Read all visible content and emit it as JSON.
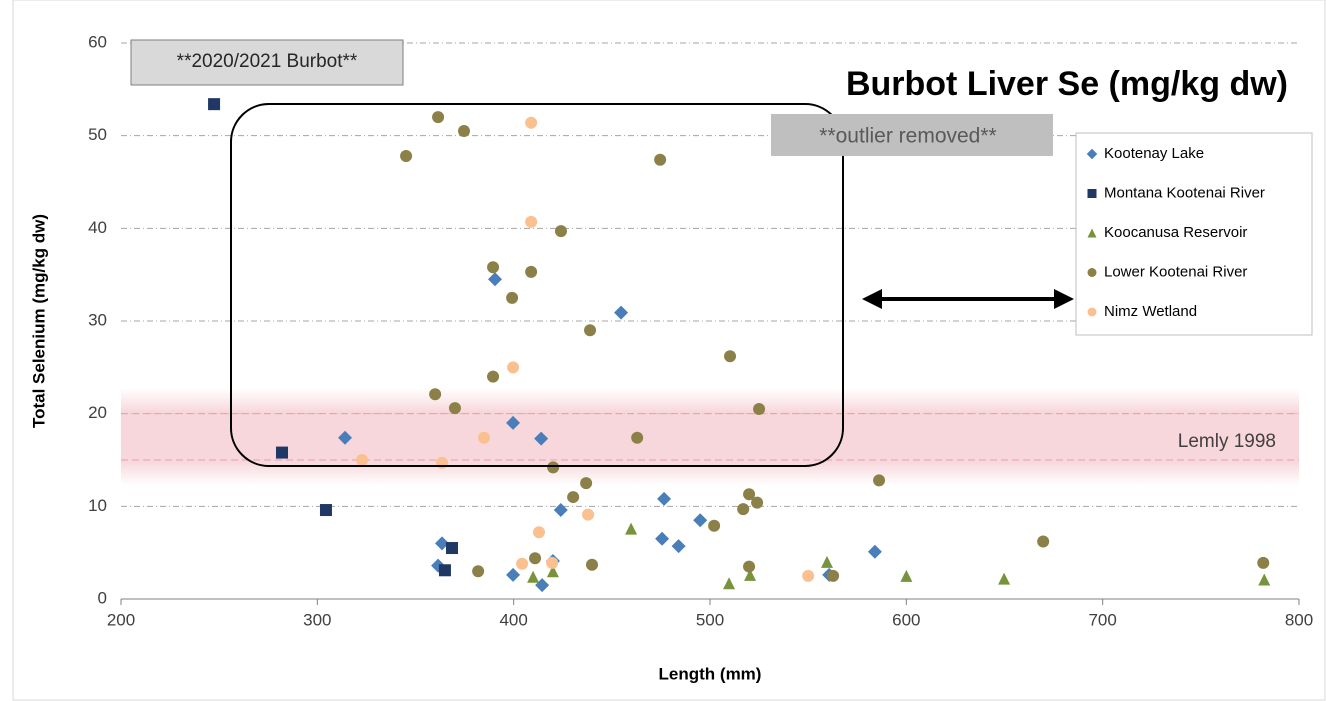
{
  "chart_data": {
    "type": "scatter",
    "title": "Burbot Liver Se (mg/kg dw)",
    "annotations": [
      "**2020/2021 Burbot**",
      "**outlier removed**"
    ],
    "x_label": "Length (mm)",
    "y_label": "Total Selenium (mg/kg dw)",
    "xlim": [
      200,
      800
    ],
    "xticks": [
      200,
      300,
      400,
      500,
      600,
      700,
      800
    ],
    "ylim": [
      0,
      60
    ],
    "yticks": [
      0,
      10,
      20,
      30,
      40,
      50,
      60
    ],
    "grid": true,
    "legend": "right",
    "reference_band": {
      "range": [
        15,
        20
      ],
      "label": "Lemly 1998",
      "color": "#e8a0a8"
    },
    "series": [
      {
        "name": "Kootenay Lake",
        "color": "#4a7ebb",
        "marker": "diamond",
        "x": [
          314.1,
          390.5,
          454.7,
          399.7,
          414,
          476.6,
          424,
          495,
          475.6,
          484,
          363.5,
          361.5,
          399.7,
          420,
          414.5,
          560.7,
          584
        ],
        "values": [
          17.4,
          34.5,
          30.9,
          19.0,
          17.3,
          10.8,
          9.6,
          8.5,
          6.5,
          5.7,
          6.0,
          3.6,
          2.6,
          4.1,
          1.5,
          2.6,
          5.1
        ]
      },
      {
        "name": "Montana Kootenai River",
        "color": "#1f3864",
        "marker": "square",
        "x": [
          247.4,
          282,
          304.4,
          365,
          368.6
        ],
        "values": [
          53.4,
          15.8,
          9.6,
          3.1,
          5.5
        ]
      },
      {
        "name": "Koocanusa Reservoir",
        "color": "#77933c",
        "marker": "triangle",
        "x": [
          459.8,
          409.9,
          420,
          509.7,
          520.4,
          559.6,
          600,
          649.8,
          782.3
        ],
        "values": [
          7.6,
          2.4,
          3.0,
          1.7,
          2.6,
          4.0,
          2.5,
          2.2,
          2.1
        ]
      },
      {
        "name": "Lower Kootenai River",
        "color": "#8b8048",
        "marker": "circle",
        "x": [
          361.5,
          374.7,
          345.2,
          474.6,
          424.1,
          389.5,
          408.9,
          399.2,
          438.9,
          510.2,
          389.5,
          360,
          370.1,
          525,
          462.9,
          420.1,
          436.9,
          586.1,
          430.3,
          519.9,
          524,
          516.9,
          502.1,
          410.9,
          439.9,
          381.9,
          519.9,
          562.7,
          669.7,
          781.8
        ],
        "values": [
          52.0,
          50.5,
          47.8,
          47.4,
          39.7,
          35.8,
          35.3,
          32.5,
          29.0,
          26.2,
          24.0,
          22.1,
          20.6,
          20.5,
          17.4,
          14.2,
          12.5,
          12.8,
          11.0,
          11.3,
          10.4,
          9.7,
          7.9,
          4.4,
          3.7,
          3.0,
          3.5,
          2.5,
          6.2,
          3.9
        ]
      },
      {
        "name": "Nimz Wetland",
        "color": "#fac090",
        "marker": "circle",
        "x": [
          408.9,
          408.9,
          399.7,
          384.9,
          322.8,
          363.5,
          412.9,
          437.9,
          404.3,
          419.6,
          550
        ],
        "values": [
          51.4,
          40.7,
          25.0,
          17.4,
          15.0,
          14.7,
          7.2,
          9.1,
          3.8,
          3.9,
          2.5
        ]
      }
    ]
  }
}
